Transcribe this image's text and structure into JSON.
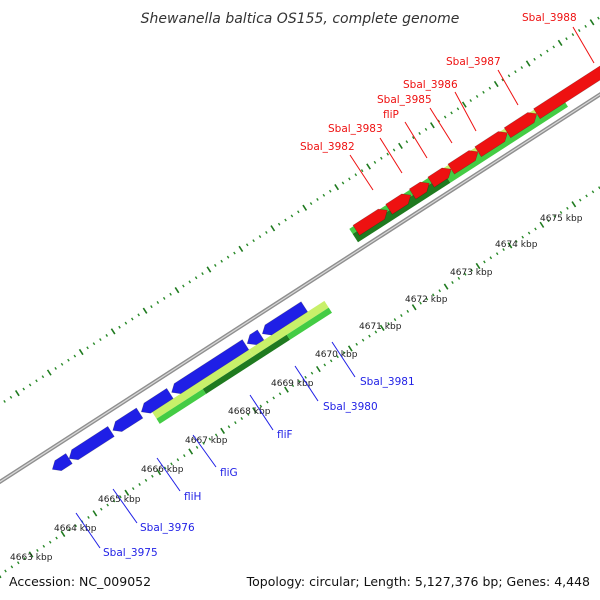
{
  "title": "Shewanella baltica OS155, complete genome",
  "accession": "Accession: NC_009052",
  "summary": "Topology: circular; Length: 5,127,376 bp; Genes: 4,448",
  "colors": {
    "background": "#ffffff",
    "backbone": "#9a9a9a",
    "forward_gene": "#ee1111",
    "reverse_gene": "#1f1fe6",
    "forward_label": "#ee1111",
    "reverse_label": "#1f1fe6",
    "tick_major": "#1f7a1f",
    "tick_minor": "#2a8a2a",
    "gc_light": "#c8f06a",
    "gc_mid": "#44cc44",
    "gc_dark": "#1f7a1f"
  },
  "kbp_labels": [
    {
      "label": "4663 kbp"
    },
    {
      "label": "4664 kbp"
    },
    {
      "label": "4665 kbp"
    },
    {
      "label": "4666 kbp"
    },
    {
      "label": "4667 kbp"
    },
    {
      "label": "4668 kbp"
    },
    {
      "label": "4669 kbp"
    },
    {
      "label": "4670 kbp"
    },
    {
      "label": "4671 kbp"
    },
    {
      "label": "4672 kbp"
    },
    {
      "label": "4673 kbp"
    },
    {
      "label": "4674 kbp"
    },
    {
      "label": "4675 kbp"
    }
  ],
  "forward_genes": [
    {
      "name": "Sbal_3982"
    },
    {
      "name": "Sbal_3983"
    },
    {
      "name": "fliP"
    },
    {
      "name": "Sbal_3985"
    },
    {
      "name": "Sbal_3986"
    },
    {
      "name": "Sbal_3987"
    },
    {
      "name": "Sbal_3988"
    }
  ],
  "reverse_genes": [
    {
      "name": "Sbal_3975"
    },
    {
      "name": "Sbal_3976"
    },
    {
      "name": "fliH"
    },
    {
      "name": "fliG"
    },
    {
      "name": "fliF"
    },
    {
      "name": "Sbal_3980"
    },
    {
      "name": "Sbal_3981"
    }
  ]
}
